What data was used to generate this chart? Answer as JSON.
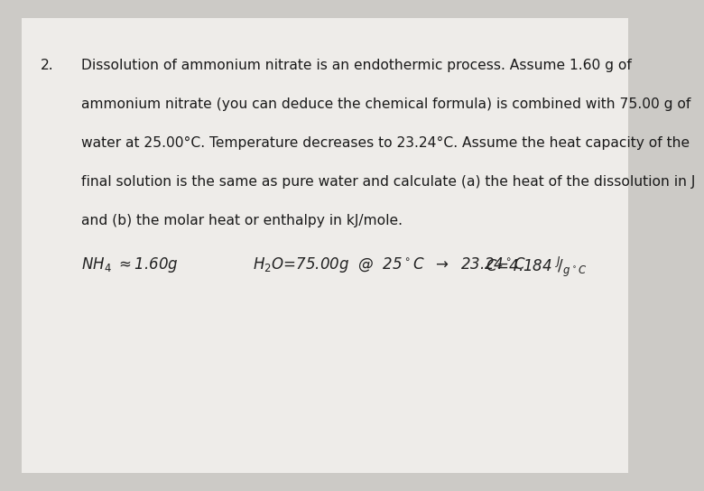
{
  "background_color": "#cccac6",
  "paper_color": "#eeece9",
  "number": "2.",
  "paragraph": [
    "Dissolution of ammonium nitrate is an endothermic process. Assume 1.60 g of",
    "ammonium nitrate (you can deduce the chemical formula) is combined with 75.00 g of",
    "water at 25.00°C. Temperature decreases to 23.24°C. Assume the heat capacity of the",
    "final solution is the same as pure water and calculate (a) the heat of the dissolution in J",
    "and (b) the molar heat or enthalpy in kJ/mole."
  ],
  "font_size_paragraph": 11.2,
  "font_size_handwritten": 12.0,
  "text_color": "#1a1a1a",
  "handwritten_color": "#222222"
}
